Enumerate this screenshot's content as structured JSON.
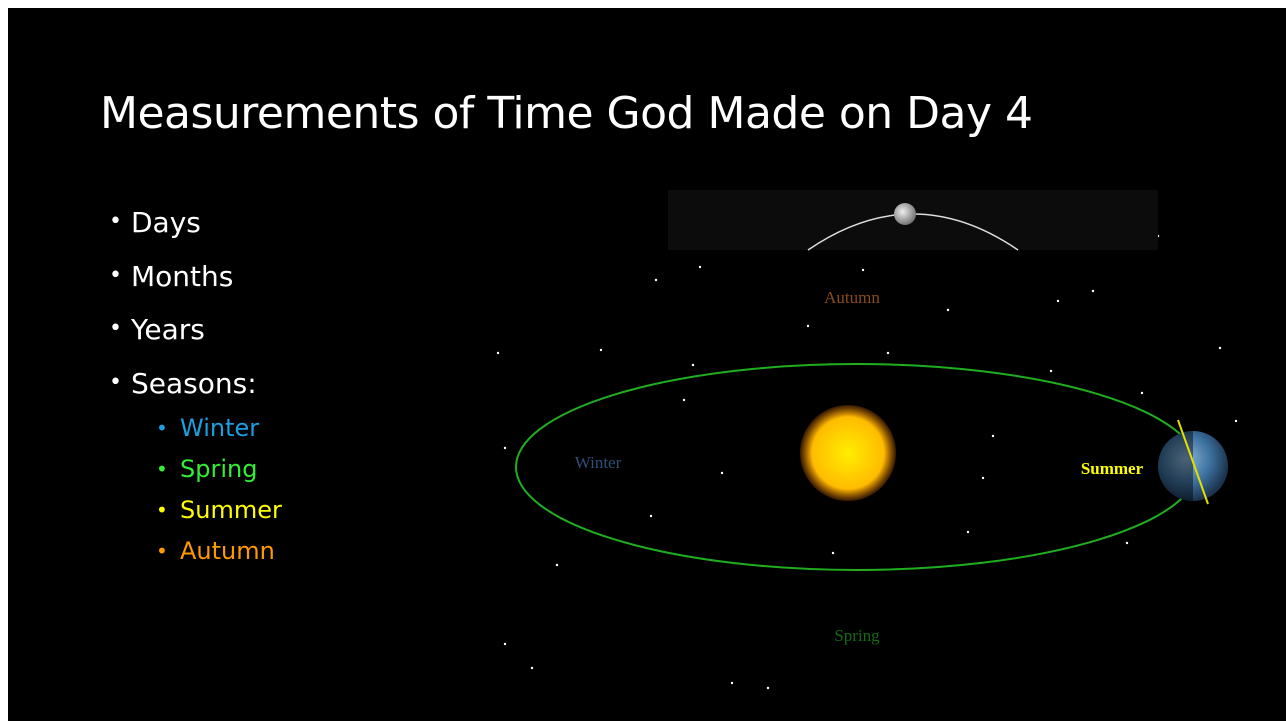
{
  "title": "Measurements of Time God Made on Day 4",
  "bullets": [
    "Days",
    "Months",
    "Years",
    "Seasons:"
  ],
  "sub_bullets": [
    "Winter",
    "Spring",
    "Summer",
    "Autumn"
  ],
  "diagram": {
    "labels": {
      "autumn": "Autumn",
      "winter": "Winter",
      "summer": "Summer",
      "spring": "Spring"
    }
  }
}
